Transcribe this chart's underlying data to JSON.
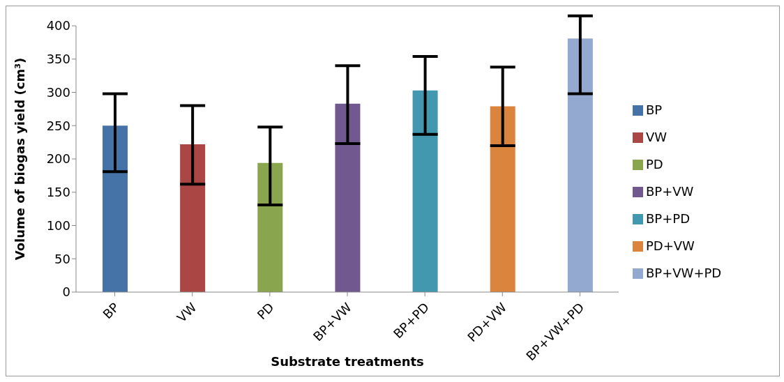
{
  "chart_data": {
    "type": "bar",
    "xlabel": "Substrate treatments",
    "ylabel": "Volume of biogas yield (cm³)",
    "categories": [
      "BP",
      "VW",
      "PD",
      "BP+VW",
      "BP+PD",
      "PD+VW",
      "BP+VW+PD"
    ],
    "series": [
      {
        "name": "BP",
        "color": "#4572a7",
        "values": [
          250,
          null,
          null,
          null,
          null,
          null,
          null
        ],
        "errors": [
          [
            181,
            298
          ],
          null,
          null,
          null,
          null,
          null,
          null
        ]
      },
      {
        "name": "VW",
        "color": "#aa4643",
        "values": [
          null,
          222,
          null,
          null,
          null,
          null,
          null
        ],
        "errors": [
          null,
          [
            162,
            280
          ],
          null,
          null,
          null,
          null,
          null
        ]
      },
      {
        "name": "PD",
        "color": "#89a54e",
        "values": [
          null,
          null,
          194,
          null,
          null,
          null,
          null
        ],
        "errors": [
          null,
          null,
          [
            131,
            248
          ],
          null,
          null,
          null,
          null
        ]
      },
      {
        "name": "BP+VW",
        "color": "#71588f",
        "values": [
          null,
          null,
          null,
          283,
          null,
          null,
          null
        ],
        "errors": [
          null,
          null,
          null,
          [
            223,
            340
          ],
          null,
          null,
          null
        ]
      },
      {
        "name": "BP+PD",
        "color": "#4198af",
        "values": [
          null,
          null,
          null,
          null,
          303,
          null,
          null
        ],
        "errors": [
          null,
          null,
          null,
          null,
          [
            237,
            354
          ],
          null,
          null
        ]
      },
      {
        "name": "PD+VW",
        "color": "#db843d",
        "values": [
          null,
          null,
          null,
          null,
          null,
          279,
          null
        ],
        "errors": [
          null,
          null,
          null,
          null,
          null,
          [
            220,
            338
          ],
          null
        ]
      },
      {
        "name": "BP+VW+PD",
        "color": "#93a9cf",
        "values": [
          null,
          null,
          null,
          null,
          null,
          null,
          381
        ],
        "errors": [
          null,
          null,
          null,
          null,
          null,
          null,
          [
            298,
            415
          ]
        ]
      }
    ],
    "ylim": [
      0,
      400
    ],
    "yticks": [
      0,
      50,
      100,
      150,
      200,
      250,
      300,
      350,
      400
    ],
    "legend": "right"
  }
}
